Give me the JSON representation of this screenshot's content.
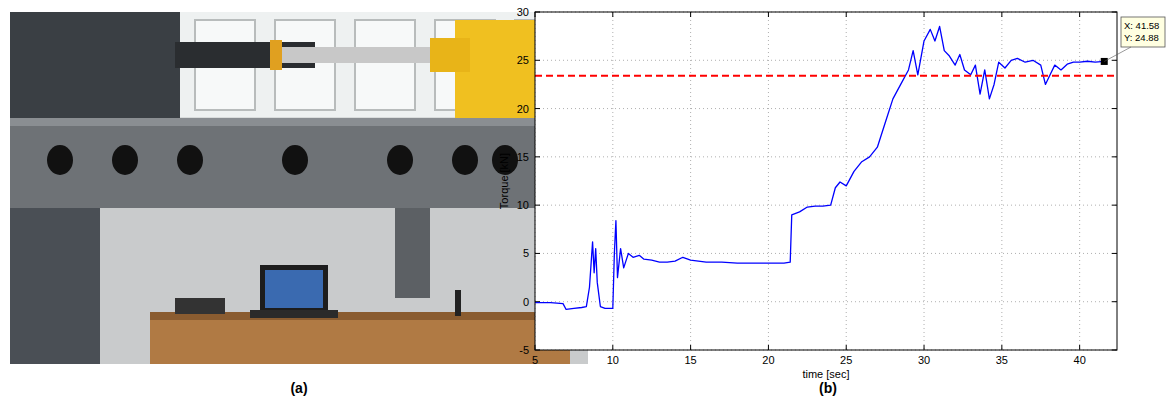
{
  "figure": {
    "panel_labels": [
      "(a)",
      "(b)"
    ]
  },
  "chart_data": {
    "type": "line",
    "xlabel": "time [sec]",
    "ylabel": "Torque [kN]",
    "xlim": [
      5,
      42.4
    ],
    "ylim": [
      -5,
      30
    ],
    "xticks": [
      5,
      10,
      15,
      20,
      25,
      30,
      35,
      40
    ],
    "yticks": [
      -5,
      0,
      5,
      10,
      15,
      20,
      25,
      30
    ],
    "grid": true,
    "series": [
      {
        "color": "#0000ff",
        "line_style": "solid",
        "x": [
          5,
          6,
          6.8,
          7.0,
          7.5,
          8.0,
          8.3,
          8.5,
          8.7,
          8.8,
          8.9,
          9.0,
          9.2,
          9.5,
          10.0,
          10.1,
          10.2,
          10.3,
          10.5,
          10.7,
          11.0,
          11.3,
          11.7,
          12.0,
          12.5,
          13,
          13.5,
          14,
          14.5,
          15,
          16,
          17,
          18,
          19,
          20,
          21,
          21.4,
          21.5,
          22,
          22.5,
          23,
          23.5,
          24,
          24.3,
          24.6,
          25,
          25.5,
          26,
          26.5,
          27,
          27.5,
          28,
          28.5,
          29,
          29.3,
          29.6,
          30,
          30.4,
          30.7,
          31,
          31.3,
          31.6,
          32,
          32.3,
          32.6,
          33,
          33.3,
          33.6,
          33.9,
          34.2,
          34.5,
          34.8,
          35.2,
          35.6,
          36,
          36.5,
          37,
          37.5,
          37.8,
          38.1,
          38.4,
          38.8,
          39.2,
          39.6,
          40,
          40.5,
          41,
          41.58
        ],
        "values": [
          -0.1,
          -0.1,
          -0.2,
          -0.8,
          -0.7,
          -0.6,
          -0.5,
          1.5,
          6.2,
          3.0,
          5.5,
          2.0,
          -0.5,
          -0.7,
          -0.7,
          5.0,
          8.4,
          2.5,
          5.5,
          3.5,
          5.0,
          4.6,
          4.8,
          4.4,
          4.3,
          4.1,
          4.1,
          4.2,
          4.6,
          4.3,
          4.1,
          4.1,
          4.0,
          4.0,
          4.0,
          4.0,
          4.1,
          9.0,
          9.3,
          9.8,
          9.9,
          9.9,
          10.0,
          11.8,
          12.4,
          12.0,
          13.5,
          14.5,
          15.0,
          16.0,
          18.5,
          21.0,
          22.5,
          24.0,
          26.0,
          23.5,
          27.0,
          28.2,
          27.0,
          28.5,
          26.0,
          25.5,
          24.5,
          25.6,
          24.0,
          23.5,
          24.5,
          21.5,
          24.0,
          21.0,
          22.5,
          24.8,
          24.2,
          25.0,
          25.2,
          24.8,
          25.0,
          24.5,
          22.5,
          23.5,
          24.5,
          24.0,
          24.6,
          24.8,
          24.8,
          24.9,
          24.8,
          24.88
        ]
      },
      {
        "color": "#ff0000",
        "line_style": "dashed",
        "x": [
          5,
          42.4
        ],
        "values": [
          23.4,
          23.4
        ]
      }
    ],
    "datatip": {
      "x": 41.58,
      "y": 24.88,
      "text": [
        "X: 41.58",
        "Y: 24.88"
      ]
    }
  }
}
